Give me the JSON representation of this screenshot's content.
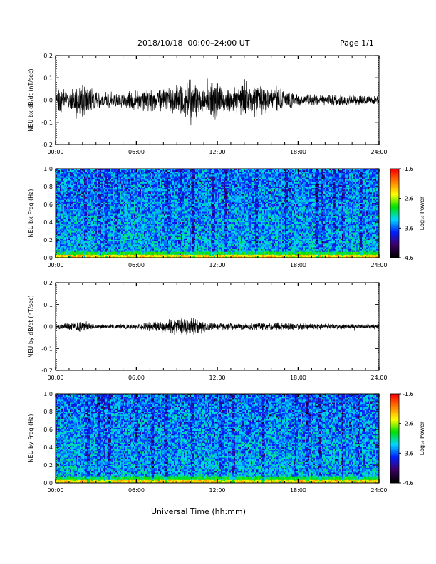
{
  "header": {
    "title": "2018/10/18  00:00–24:00 UT",
    "page": "Page 1/1"
  },
  "xlabel": "Universal Time (hh:mm)",
  "x_ticks": [
    "00:00",
    "06:00",
    "12:00",
    "18:00",
    "24:00"
  ],
  "colors": {
    "trace": "#000000",
    "colormap": [
      "#000000",
      "#3d0068",
      "#0020ff",
      "#00d8ff",
      "#00e000",
      "#ffff00",
      "#ff8000",
      "#ff0000"
    ]
  },
  "chart_data": [
    {
      "type": "line",
      "ylabel": "NEU bx dB/dt (nT/sec)",
      "xlim": [
        0,
        24
      ],
      "ylim": [
        -0.2,
        0.2
      ],
      "y_ticks": [
        "0.2",
        "0.1",
        "0.0",
        "-0.1",
        "-0.2"
      ],
      "activity_envelope": [
        {
          "t": 0,
          "amp": 0.03
        },
        {
          "t": 0.3,
          "amp": 0.07
        },
        {
          "t": 1,
          "amp": 0.04
        },
        {
          "t": 2,
          "amp": 0.09
        },
        {
          "t": 3,
          "amp": 0.04
        },
        {
          "t": 4.5,
          "amp": 0.04
        },
        {
          "t": 6,
          "amp": 0.05
        },
        {
          "t": 8,
          "amp": 0.06
        },
        {
          "t": 9.5,
          "amp": 0.09
        },
        {
          "t": 10,
          "amp": 0.12
        },
        {
          "t": 11,
          "amp": 0.06
        },
        {
          "t": 11.8,
          "amp": 0.12
        },
        {
          "t": 12.5,
          "amp": 0.05
        },
        {
          "t": 14.5,
          "amp": 0.09
        },
        {
          "t": 15.5,
          "amp": 0.07
        },
        {
          "t": 16.5,
          "amp": 0.06
        },
        {
          "t": 18,
          "amp": 0.03
        },
        {
          "t": 21,
          "amp": 0.03
        },
        {
          "t": 24,
          "amp": 0.02
        }
      ]
    },
    {
      "type": "heatmap",
      "ylabel": "NEU bx Freq (Hz)",
      "xlim": [
        0,
        24
      ],
      "ylim": [
        0,
        1.0
      ],
      "y_ticks": [
        "1.0",
        "0.8",
        "0.6",
        "0.4",
        "0.2",
        "0.0"
      ],
      "colorbar": {
        "label": "Log₁₀ Power",
        "ticks": [
          "-1.6",
          "-2.6",
          "-3.6",
          "-4.6"
        ],
        "range": [
          -4.6,
          -1.6
        ]
      },
      "dark_streaks_hours": [
        2.2,
        3.3,
        3.8,
        4.6,
        8.3,
        9.3,
        10.2,
        11.7,
        12.6,
        14.9,
        17.1,
        19.4,
        19.8,
        20.7,
        21.3,
        22.7
      ]
    },
    {
      "type": "line",
      "ylabel": "NEU by dB/dt (nT/sec)",
      "xlim": [
        0,
        24
      ],
      "ylim": [
        -0.2,
        0.2
      ],
      "y_ticks": [
        "0.2",
        "0.1",
        "0.0",
        "-0.1",
        "-0.2"
      ],
      "activity_envelope": [
        {
          "t": 0,
          "amp": 0.01
        },
        {
          "t": 2,
          "amp": 0.03
        },
        {
          "t": 3,
          "amp": 0.01
        },
        {
          "t": 6,
          "amp": 0.015
        },
        {
          "t": 8,
          "amp": 0.03
        },
        {
          "t": 9.5,
          "amp": 0.05
        },
        {
          "t": 10.5,
          "amp": 0.04
        },
        {
          "t": 11.5,
          "amp": 0.02
        },
        {
          "t": 13,
          "amp": 0.015
        },
        {
          "t": 16,
          "amp": 0.02
        },
        {
          "t": 24,
          "amp": 0.01
        }
      ]
    },
    {
      "type": "heatmap",
      "ylabel": "NEU by Freq (Hz)",
      "xlim": [
        0,
        24
      ],
      "ylim": [
        0,
        1.0
      ],
      "y_ticks": [
        "1.0",
        "0.8",
        "0.6",
        "0.4",
        "0.2",
        "0.0"
      ],
      "colorbar": {
        "label": "Log₁₀ Power",
        "ticks": [
          "-1.6",
          "-2.6",
          "-3.6",
          "-4.6"
        ],
        "range": [
          -4.6,
          -1.6
        ]
      },
      "dark_streaks_hours": [
        2.4,
        3.2,
        3.6,
        4.0,
        6.0,
        7.2,
        8.2,
        10.1,
        12.3,
        13.2,
        15.4,
        17.8,
        18.7,
        19.6,
        21.3,
        22.5
      ]
    }
  ]
}
